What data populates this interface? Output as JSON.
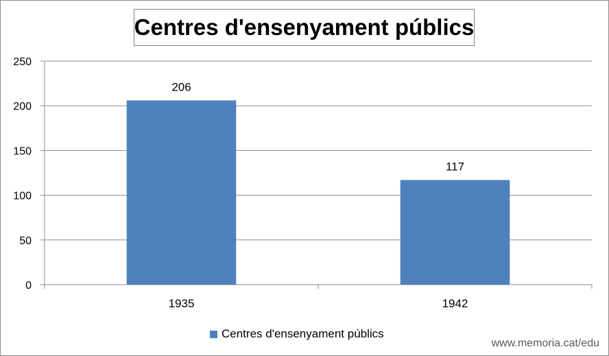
{
  "chart_data": {
    "type": "bar",
    "title": "Centres d'ensenyament públics",
    "categories": [
      "1935",
      "1942"
    ],
    "series": [
      {
        "name": "Centres d'ensenyament públics",
        "values": [
          206,
          117
        ],
        "color": "#4f81bd"
      }
    ],
    "data_labels": [
      "206",
      "117"
    ],
    "ylim": [
      0,
      250
    ],
    "yticks": [
      0,
      50,
      100,
      150,
      200,
      250
    ],
    "ytick_labels": [
      "0",
      "50",
      "100",
      "150",
      "200",
      "250"
    ],
    "grid": true,
    "legend_position": "bottom"
  },
  "watermark": "www.memoria.cat/edu"
}
